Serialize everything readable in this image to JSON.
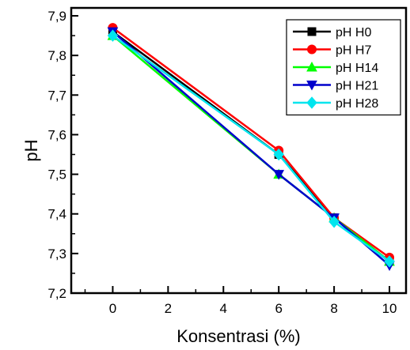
{
  "chart_data": {
    "type": "line",
    "title": "",
    "xlabel": "Konsentrasi (%)",
    "ylabel": "pH",
    "xlim": [
      -1.5,
      10.6
    ],
    "ylim": [
      7.2,
      7.92
    ],
    "x_ticks": [
      0,
      2,
      4,
      6,
      8,
      10
    ],
    "x_tick_labels": [
      "0",
      "2",
      "4",
      "6",
      "8",
      "10"
    ],
    "y_ticks": [
      7.2,
      7.3,
      7.4,
      7.5,
      7.6,
      7.7,
      7.8,
      7.9
    ],
    "y_tick_labels": [
      "7,2",
      "7,3",
      "7,4",
      "7,5",
      "7,6",
      "7,7",
      "7,8",
      "7,9"
    ],
    "grid": false,
    "legend_position": "top-right",
    "x": [
      0,
      6,
      8,
      10
    ],
    "series": [
      {
        "name": "pH H0",
        "values": [
          7.86,
          7.55,
          7.39,
          7.28
        ],
        "color": "#000000",
        "marker": "square"
      },
      {
        "name": "pH H7",
        "values": [
          7.87,
          7.56,
          7.39,
          7.29
        ],
        "color": "#ff0000",
        "marker": "circle"
      },
      {
        "name": "pH H14",
        "values": [
          7.85,
          7.5,
          7.39,
          7.28
        ],
        "color": "#00ff00",
        "marker": "triangle-up"
      },
      {
        "name": "pH H21",
        "values": [
          7.86,
          7.5,
          7.39,
          7.27
        ],
        "color": "#0000cc",
        "marker": "triangle-down"
      },
      {
        "name": "pH H28",
        "values": [
          7.85,
          7.55,
          7.38,
          7.28
        ],
        "color": "#00e5ee",
        "marker": "diamond"
      }
    ]
  }
}
